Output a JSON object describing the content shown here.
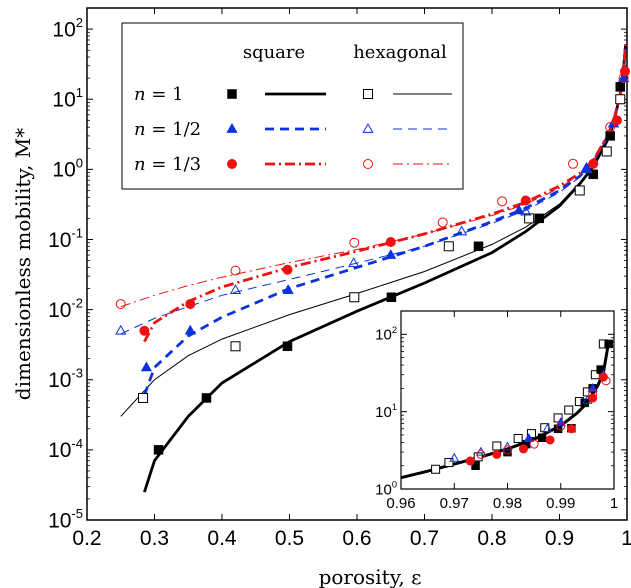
{
  "chart_data": [
    {
      "type": "line",
      "xlabel": "porosity, ε",
      "ylabel": "dimensionless mobility, M*",
      "xlim": [
        0.2,
        1.0
      ],
      "ylim": [
        1e-05,
        200
      ],
      "yscale": "log",
      "x_ticks": [
        "0.2",
        "0.3",
        "0.4",
        "0.5",
        "0.6",
        "0.7",
        "0.8",
        "0.9",
        "1"
      ],
      "y_ticks": [
        {
          "base": "10",
          "exp": "-5",
          "value": 1e-05
        },
        {
          "base": "10",
          "exp": "-4",
          "value": 0.0001
        },
        {
          "base": "10",
          "exp": "-3",
          "value": 0.001
        },
        {
          "base": "10",
          "exp": "-2",
          "value": 0.01
        },
        {
          "base": "10",
          "exp": "-1",
          "value": 0.1
        },
        {
          "base": "10",
          "exp": "0",
          "value": 1
        },
        {
          "base": "10",
          "exp": "1",
          "value": 10
        },
        {
          "base": "10",
          "exp": "2",
          "value": 100
        }
      ],
      "legend": {
        "placement": "top-left",
        "col_square": "square",
        "col_hexagonal": "hexagonal",
        "rows": [
          {
            "label": "n = 1",
            "color": "#000000",
            "marker": "filled-square",
            "hex_marker": "open-square",
            "line": "solid"
          },
          {
            "label": "n = 1/2",
            "color": "#0a32e0",
            "marker": "filled-triangle",
            "hex_marker": "open-triangle",
            "line": "dashed"
          },
          {
            "label": "n = 1/3",
            "color": "#ee1111",
            "marker": "filled-circle",
            "hex_marker": "open-circle",
            "line": "dashdot"
          }
        ]
      },
      "series": [
        {
          "name": "n = 1",
          "group": "square",
          "kind": "markers",
          "marker": "filled-square",
          "color": "#000000",
          "x": [
            0.306,
            0.377,
            0.497,
            0.651,
            0.78,
            0.87,
            0.95,
            0.975,
            0.99
          ],
          "y": [
            0.0001,
            0.00055,
            0.003,
            0.015,
            0.08,
            0.2,
            0.85,
            3.0,
            15
          ]
        },
        {
          "name": "n = 1",
          "group": "hexagonal",
          "kind": "markers",
          "marker": "open-square",
          "color": "#000000",
          "x": [
            0.283,
            0.42,
            0.596,
            0.736,
            0.855,
            0.93,
            0.97,
            0.99
          ],
          "y": [
            0.00055,
            0.003,
            0.015,
            0.08,
            0.2,
            0.5,
            1.8,
            10
          ]
        },
        {
          "name": "n = 1/2",
          "group": "square",
          "kind": "markers",
          "marker": "filled-triangle",
          "color": "#0a32e0",
          "x": [
            0.288,
            0.353,
            0.498,
            0.65,
            0.84,
            0.94,
            0.98,
            0.995
          ],
          "y": [
            0.0015,
            0.005,
            0.019,
            0.06,
            0.26,
            1.0,
            4.5,
            20
          ]
        },
        {
          "name": "n = 1/2",
          "group": "hexagonal",
          "kind": "markers",
          "marker": "open-triangle",
          "color": "#0a32e0",
          "x": [
            0.25,
            0.42,
            0.595,
            0.755,
            0.85,
            0.94,
            0.98,
            0.995
          ],
          "y": [
            0.005,
            0.019,
            0.046,
            0.13,
            0.25,
            1.05,
            4.5,
            20
          ]
        },
        {
          "name": "n = 1/3",
          "group": "square",
          "kind": "markers",
          "marker": "filled-circle",
          "color": "#ee1111",
          "x": [
            0.285,
            0.353,
            0.497,
            0.65,
            0.85,
            0.95,
            0.985,
            0.997
          ],
          "y": [
            0.005,
            0.012,
            0.037,
            0.092,
            0.36,
            1.2,
            5,
            25
          ]
        },
        {
          "name": "n = 1/3",
          "group": "hexagonal",
          "kind": "markers",
          "marker": "open-circle",
          "color": "#ee1111",
          "x": [
            0.25,
            0.42,
            0.596,
            0.727,
            0.815,
            0.92,
            0.975,
            0.995
          ],
          "y": [
            0.012,
            0.036,
            0.09,
            0.175,
            0.35,
            1.2,
            4,
            20
          ]
        },
        {
          "name": "n = 1",
          "group": "square",
          "kind": "curve",
          "color": "#000000",
          "width": 2.8,
          "dash": "",
          "x": [
            0.285,
            0.3,
            0.35,
            0.4,
            0.5,
            0.6,
            0.7,
            0.8,
            0.85,
            0.9,
            0.93,
            0.95,
            0.97,
            0.98,
            0.99,
            0.995,
            0.998
          ],
          "y": [
            2.5e-05,
            7e-05,
            0.0003,
            0.0009,
            0.0035,
            0.0095,
            0.024,
            0.065,
            0.13,
            0.3,
            0.62,
            1.1,
            2.5,
            4.5,
            12,
            28,
            60
          ]
        },
        {
          "name": "n = 1",
          "group": "hexagonal",
          "kind": "curve",
          "color": "#000000",
          "width": 1.0,
          "dash": "",
          "x": [
            0.25,
            0.3,
            0.35,
            0.4,
            0.5,
            0.6,
            0.7,
            0.8,
            0.85,
            0.9,
            0.93,
            0.95,
            0.97,
            0.98,
            0.99,
            0.995,
            0.998
          ],
          "y": [
            0.0003,
            0.001,
            0.0022,
            0.0038,
            0.0085,
            0.017,
            0.035,
            0.085,
            0.15,
            0.32,
            0.65,
            1.1,
            2.6,
            4.5,
            12,
            28,
            60
          ]
        },
        {
          "name": "n = 1/2",
          "group": "square",
          "kind": "curve",
          "color": "#0a32e0",
          "width": 2.8,
          "dash": "9,6",
          "x": [
            0.285,
            0.3,
            0.35,
            0.4,
            0.5,
            0.6,
            0.7,
            0.8,
            0.85,
            0.9,
            0.93,
            0.95,
            0.97,
            0.98,
            0.99,
            0.995,
            0.998
          ],
          "y": [
            0.0006,
            0.0015,
            0.0042,
            0.0078,
            0.02,
            0.04,
            0.08,
            0.18,
            0.28,
            0.5,
            0.8,
            1.3,
            2.8,
            4.8,
            12,
            28,
            60
          ]
        },
        {
          "name": "n = 1/2",
          "group": "hexagonal",
          "kind": "curve",
          "color": "#0a32e0",
          "width": 1.0,
          "dash": "9,6",
          "x": [
            0.25,
            0.3,
            0.35,
            0.4,
            0.5,
            0.6,
            0.7,
            0.8,
            0.85,
            0.9,
            0.93,
            0.95,
            0.97,
            0.98,
            0.99,
            0.995,
            0.998
          ],
          "y": [
            0.0045,
            0.0075,
            0.011,
            0.016,
            0.027,
            0.046,
            0.08,
            0.17,
            0.26,
            0.47,
            0.78,
            1.25,
            2.8,
            4.8,
            12,
            28,
            60
          ]
        },
        {
          "name": "n = 1/3",
          "group": "square",
          "kind": "curve",
          "color": "#ee1111",
          "width": 2.8,
          "dash": "10,4,2,4",
          "x": [
            0.285,
            0.3,
            0.35,
            0.4,
            0.5,
            0.6,
            0.7,
            0.8,
            0.85,
            0.9,
            0.93,
            0.95,
            0.97,
            0.98,
            0.99,
            0.995,
            0.998
          ],
          "y": [
            0.0035,
            0.0065,
            0.013,
            0.021,
            0.04,
            0.068,
            0.12,
            0.23,
            0.34,
            0.58,
            0.88,
            1.35,
            2.9,
            4.8,
            12,
            28,
            60
          ]
        },
        {
          "name": "n = 1/3",
          "group": "hexagonal",
          "kind": "curve",
          "color": "#ee1111",
          "width": 1.0,
          "dash": "10,4,2,4",
          "x": [
            0.25,
            0.3,
            0.35,
            0.4,
            0.5,
            0.6,
            0.7,
            0.8,
            0.85,
            0.9,
            0.93,
            0.95,
            0.97,
            0.98,
            0.99,
            0.995,
            0.998
          ],
          "y": [
            0.011,
            0.016,
            0.022,
            0.029,
            0.047,
            0.072,
            0.12,
            0.22,
            0.32,
            0.54,
            0.85,
            1.3,
            2.9,
            4.8,
            12,
            28,
            60
          ]
        }
      ]
    },
    {
      "type": "scatter",
      "placement": "bottom-right inset",
      "xlim": [
        0.96,
        1.0
      ],
      "ylim": [
        1,
        200
      ],
      "yscale": "log",
      "x_ticks": [
        "0.96",
        "0.97",
        "0.98",
        "0.99",
        "1"
      ],
      "y_ticks": [
        {
          "base": "10",
          "exp": "0",
          "value": 1
        },
        {
          "base": "10",
          "exp": "1",
          "value": 10
        },
        {
          "base": "10",
          "exp": "2",
          "value": 100
        }
      ],
      "series": [
        {
          "name": "n = 1",
          "group": "hexagonal",
          "kind": "markers",
          "marker": "open-square",
          "color": "#000000",
          "x": [
            0.9665,
            0.969,
            0.9745,
            0.978,
            0.982,
            0.9845,
            0.987,
            0.9895,
            0.9915,
            0.9935,
            0.995,
            0.9965,
            0.998
          ],
          "y": [
            1.8,
            2.2,
            2.6,
            3.6,
            4.5,
            5.2,
            6.2,
            8.3,
            10.5,
            13.5,
            18,
            30,
            75
          ]
        },
        {
          "name": "n = 1",
          "group": "square",
          "kind": "markers",
          "marker": "filled-square",
          "color": "#000000",
          "x": [
            0.974,
            0.98,
            0.9835,
            0.9865,
            0.9895,
            0.992,
            0.9945,
            0.996,
            0.9975,
            0.999
          ],
          "y": [
            2.0,
            3.0,
            3.8,
            4.6,
            6.0,
            6.1,
            13,
            20,
            35,
            75
          ]
        },
        {
          "name": "n = 1/2",
          "group": "hexagonal",
          "kind": "markers",
          "marker": "open-triangle",
          "color": "#0a32e0",
          "x": [
            0.97,
            0.975,
            0.98,
            0.9875,
            0.995
          ],
          "y": [
            2.5,
            3.0,
            3.5,
            6.0,
            14
          ]
        },
        {
          "name": "n = 1/2",
          "group": "square",
          "kind": "markers",
          "marker": "filled-triangle",
          "color": "#0a32e0",
          "x": [
            0.984,
            0.99,
            0.996,
            0.998
          ],
          "y": [
            4.5,
            7.2,
            20,
            30
          ]
        },
        {
          "name": "n = 1/3",
          "group": "hexagonal",
          "kind": "markers",
          "marker": "open-circle",
          "color": "#ee1111",
          "x": [
            0.975,
            0.98,
            0.985,
            0.99,
            0.996,
            0.9985
          ],
          "y": [
            2.8,
            3.2,
            3.8,
            6.5,
            17,
            25
          ]
        },
        {
          "name": "n = 1/3",
          "group": "square",
          "kind": "markers",
          "marker": "filled-circle",
          "color": "#ee1111",
          "x": [
            0.973,
            0.978,
            0.983,
            0.988,
            0.992,
            0.996,
            0.998
          ],
          "y": [
            2.3,
            2.8,
            3.3,
            4.3,
            6.0,
            15,
            28
          ]
        },
        {
          "name": "n = 1",
          "group": "square",
          "kind": "curve",
          "color": "#000000",
          "width": 3,
          "dash": "",
          "x": [
            0.96,
            0.965,
            0.97,
            0.975,
            0.98,
            0.985,
            0.99,
            0.993,
            0.995,
            0.997,
            0.998,
            0.999
          ],
          "y": [
            1.4,
            1.7,
            2.1,
            2.6,
            3.3,
            4.4,
            6.6,
            9.5,
            13,
            22,
            32,
            80
          ]
        }
      ]
    }
  ]
}
